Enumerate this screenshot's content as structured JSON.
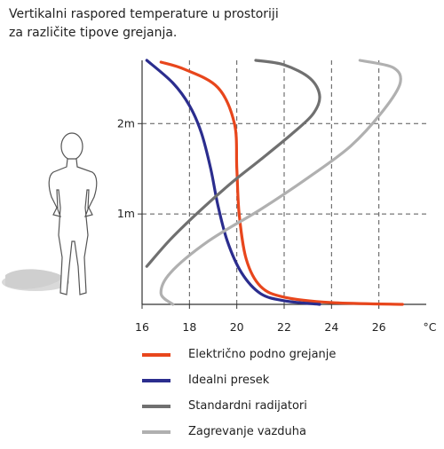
{
  "title_lines": [
    "Vertikalni raspored temperature u prostoriji",
    "za različite tipove grejanja."
  ],
  "chart_data": {
    "type": "line",
    "title": "Vertikalni raspored temperature u prostoriji za različite tipove grejanja.",
    "x_axis": {
      "unit": "°C",
      "range": [
        16,
        28
      ],
      "ticks": [
        "16",
        "18",
        "20",
        "22",
        "24",
        "26"
      ]
    },
    "y_axis": {
      "range": [
        0,
        2.7
      ],
      "ticks": [
        "1m",
        "2m"
      ],
      "tick_values": [
        1,
        2
      ]
    },
    "grid": true,
    "legend_position": "bottom",
    "series": [
      {
        "name": "Električno podno grejanje",
        "color": "#e8461c",
        "points": [
          [
            27.0,
            0.0
          ],
          [
            24.0,
            0.02
          ],
          [
            22.0,
            0.08
          ],
          [
            21.0,
            0.2
          ],
          [
            20.4,
            0.5
          ],
          [
            20.1,
            1.0
          ],
          [
            20.0,
            1.5
          ],
          [
            19.9,
            2.0
          ],
          [
            19.2,
            2.4
          ],
          [
            17.8,
            2.6
          ],
          [
            16.8,
            2.68
          ]
        ]
      },
      {
        "name": "Idealni presek",
        "color": "#2b2d8e",
        "points": [
          [
            23.5,
            0.0
          ],
          [
            22.0,
            0.04
          ],
          [
            21.0,
            0.12
          ],
          [
            20.2,
            0.35
          ],
          [
            19.6,
            0.7
          ],
          [
            19.2,
            1.1
          ],
          [
            18.9,
            1.5
          ],
          [
            18.5,
            1.9
          ],
          [
            18.0,
            2.2
          ],
          [
            17.3,
            2.45
          ],
          [
            16.2,
            2.7
          ]
        ]
      },
      {
        "name": "Standardni radijatori",
        "color": "#707070",
        "points": [
          [
            16.2,
            0.42
          ],
          [
            17.2,
            0.72
          ],
          [
            18.5,
            1.05
          ],
          [
            19.8,
            1.35
          ],
          [
            21.0,
            1.6
          ],
          [
            22.3,
            1.88
          ],
          [
            23.2,
            2.1
          ],
          [
            23.5,
            2.3
          ],
          [
            23.1,
            2.5
          ],
          [
            22.0,
            2.65
          ],
          [
            20.8,
            2.7
          ]
        ]
      },
      {
        "name": "Zagrevanje vazduha",
        "color": "#b0b0b0",
        "points": [
          [
            17.3,
            0.0
          ],
          [
            16.8,
            0.12
          ],
          [
            17.2,
            0.35
          ],
          [
            18.8,
            0.7
          ],
          [
            21.0,
            1.05
          ],
          [
            23.0,
            1.4
          ],
          [
            24.8,
            1.75
          ],
          [
            26.2,
            2.15
          ],
          [
            26.9,
            2.45
          ],
          [
            26.6,
            2.62
          ],
          [
            25.2,
            2.7
          ]
        ]
      }
    ]
  },
  "icons": {
    "figure": "standing-person-silhouette-icon"
  }
}
